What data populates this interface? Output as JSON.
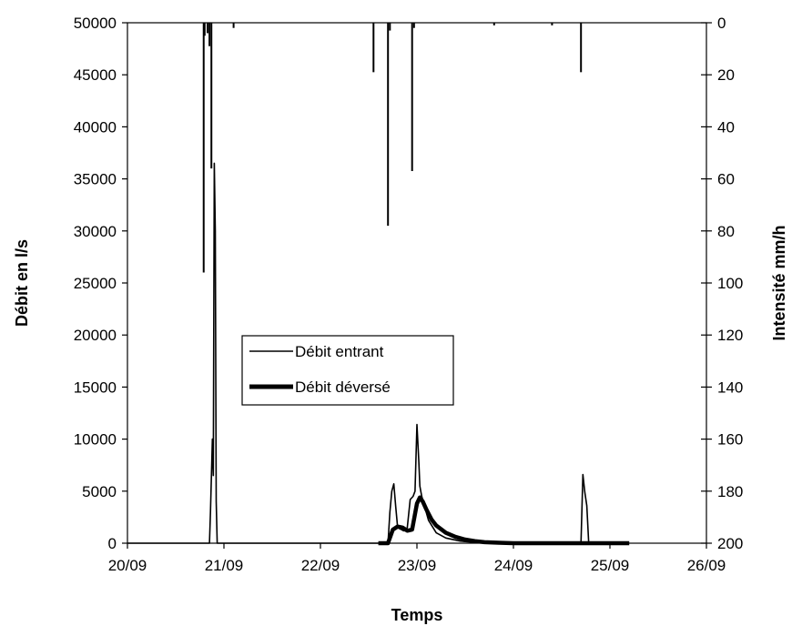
{
  "chart_data": {
    "type": "line",
    "title": "",
    "xlabel": "Temps",
    "ylabel_left": "Débit en l/s",
    "ylabel_right": "Intensité mm/h",
    "x_unit": "day of September",
    "x_ticks": [
      "20/09",
      "21/09",
      "22/09",
      "23/09",
      "24/09",
      "25/09",
      "26/09"
    ],
    "x_tick_values": [
      20,
      21,
      22,
      23,
      24,
      25,
      26
    ],
    "xlim": [
      20,
      26
    ],
    "y_left_lim": [
      0,
      50000
    ],
    "y_left_ticks": [
      "0",
      "5000",
      "10000",
      "15000",
      "20000",
      "25000",
      "30000",
      "35000",
      "40000",
      "45000",
      "50000"
    ],
    "y_right_lim": [
      0,
      200
    ],
    "y_right_inverted": true,
    "y_right_ticks": [
      "0",
      "20",
      "40",
      "60",
      "80",
      "100",
      "120",
      "140",
      "160",
      "180",
      "200"
    ],
    "legend": [
      "Débit entrant",
      "Débit déversé"
    ],
    "legend_placement": "center",
    "grid": false,
    "series": [
      {
        "name": "Débit entrant",
        "axis": "left",
        "style": "thin",
        "x": [
          20.0,
          20.85,
          20.86,
          20.88,
          20.89,
          20.9,
          20.91,
          20.92,
          20.93,
          20.95,
          20.96,
          20.98,
          21.0,
          22.0,
          22.7,
          22.72,
          22.74,
          22.76,
          22.78,
          22.8,
          22.82,
          22.84,
          22.86,
          22.88,
          22.9,
          22.93,
          22.96,
          22.98,
          23.0,
          23.02,
          23.03,
          23.04,
          23.05,
          23.08,
          23.12,
          23.2,
          23.3,
          23.45,
          23.6,
          23.8,
          24.0,
          24.5,
          24.7,
          24.72,
          24.74,
          24.76,
          24.78,
          24.8,
          24.82,
          24.85,
          25.0,
          25.2
        ],
        "y": [
          0,
          0,
          3000,
          10000,
          6500,
          36500,
          30000,
          4000,
          0,
          0,
          0,
          0,
          0,
          0,
          0,
          3000,
          5000,
          5700,
          3500,
          1500,
          1400,
          1300,
          1200,
          1200,
          1500,
          4200,
          4500,
          5000,
          11400,
          7800,
          5500,
          5000,
          4500,
          3500,
          2200,
          1000,
          500,
          200,
          80,
          0,
          0,
          0,
          0,
          6600,
          4900,
          3600,
          0,
          0,
          0,
          0,
          0,
          0
        ]
      },
      {
        "name": "Débit déversé",
        "axis": "left",
        "style": "thick",
        "x": [
          22.6,
          22.7,
          22.75,
          22.8,
          22.85,
          22.9,
          22.95,
          23.0,
          23.03,
          23.06,
          23.1,
          23.15,
          23.2,
          23.3,
          23.4,
          23.5,
          23.6,
          23.7,
          23.85,
          24.0,
          24.5,
          25.0,
          25.2
        ],
        "y": [
          0,
          0,
          1300,
          1600,
          1500,
          1200,
          1300,
          3800,
          4400,
          4000,
          3200,
          2300,
          1700,
          1000,
          600,
          350,
          200,
          100,
          40,
          0,
          0,
          0,
          0
        ]
      },
      {
        "name": "Intensité",
        "axis": "right",
        "style": "thin",
        "type": "bars_from_top",
        "x": [
          20.79,
          20.8,
          20.83,
          20.85,
          20.87,
          21.1,
          22.55,
          22.7,
          22.72,
          22.95,
          22.97,
          23.8,
          24.4,
          24.7
        ],
        "values": [
          96,
          5,
          4,
          9,
          56,
          2,
          19,
          78,
          3,
          57,
          2,
          1,
          1,
          19
        ]
      }
    ]
  }
}
